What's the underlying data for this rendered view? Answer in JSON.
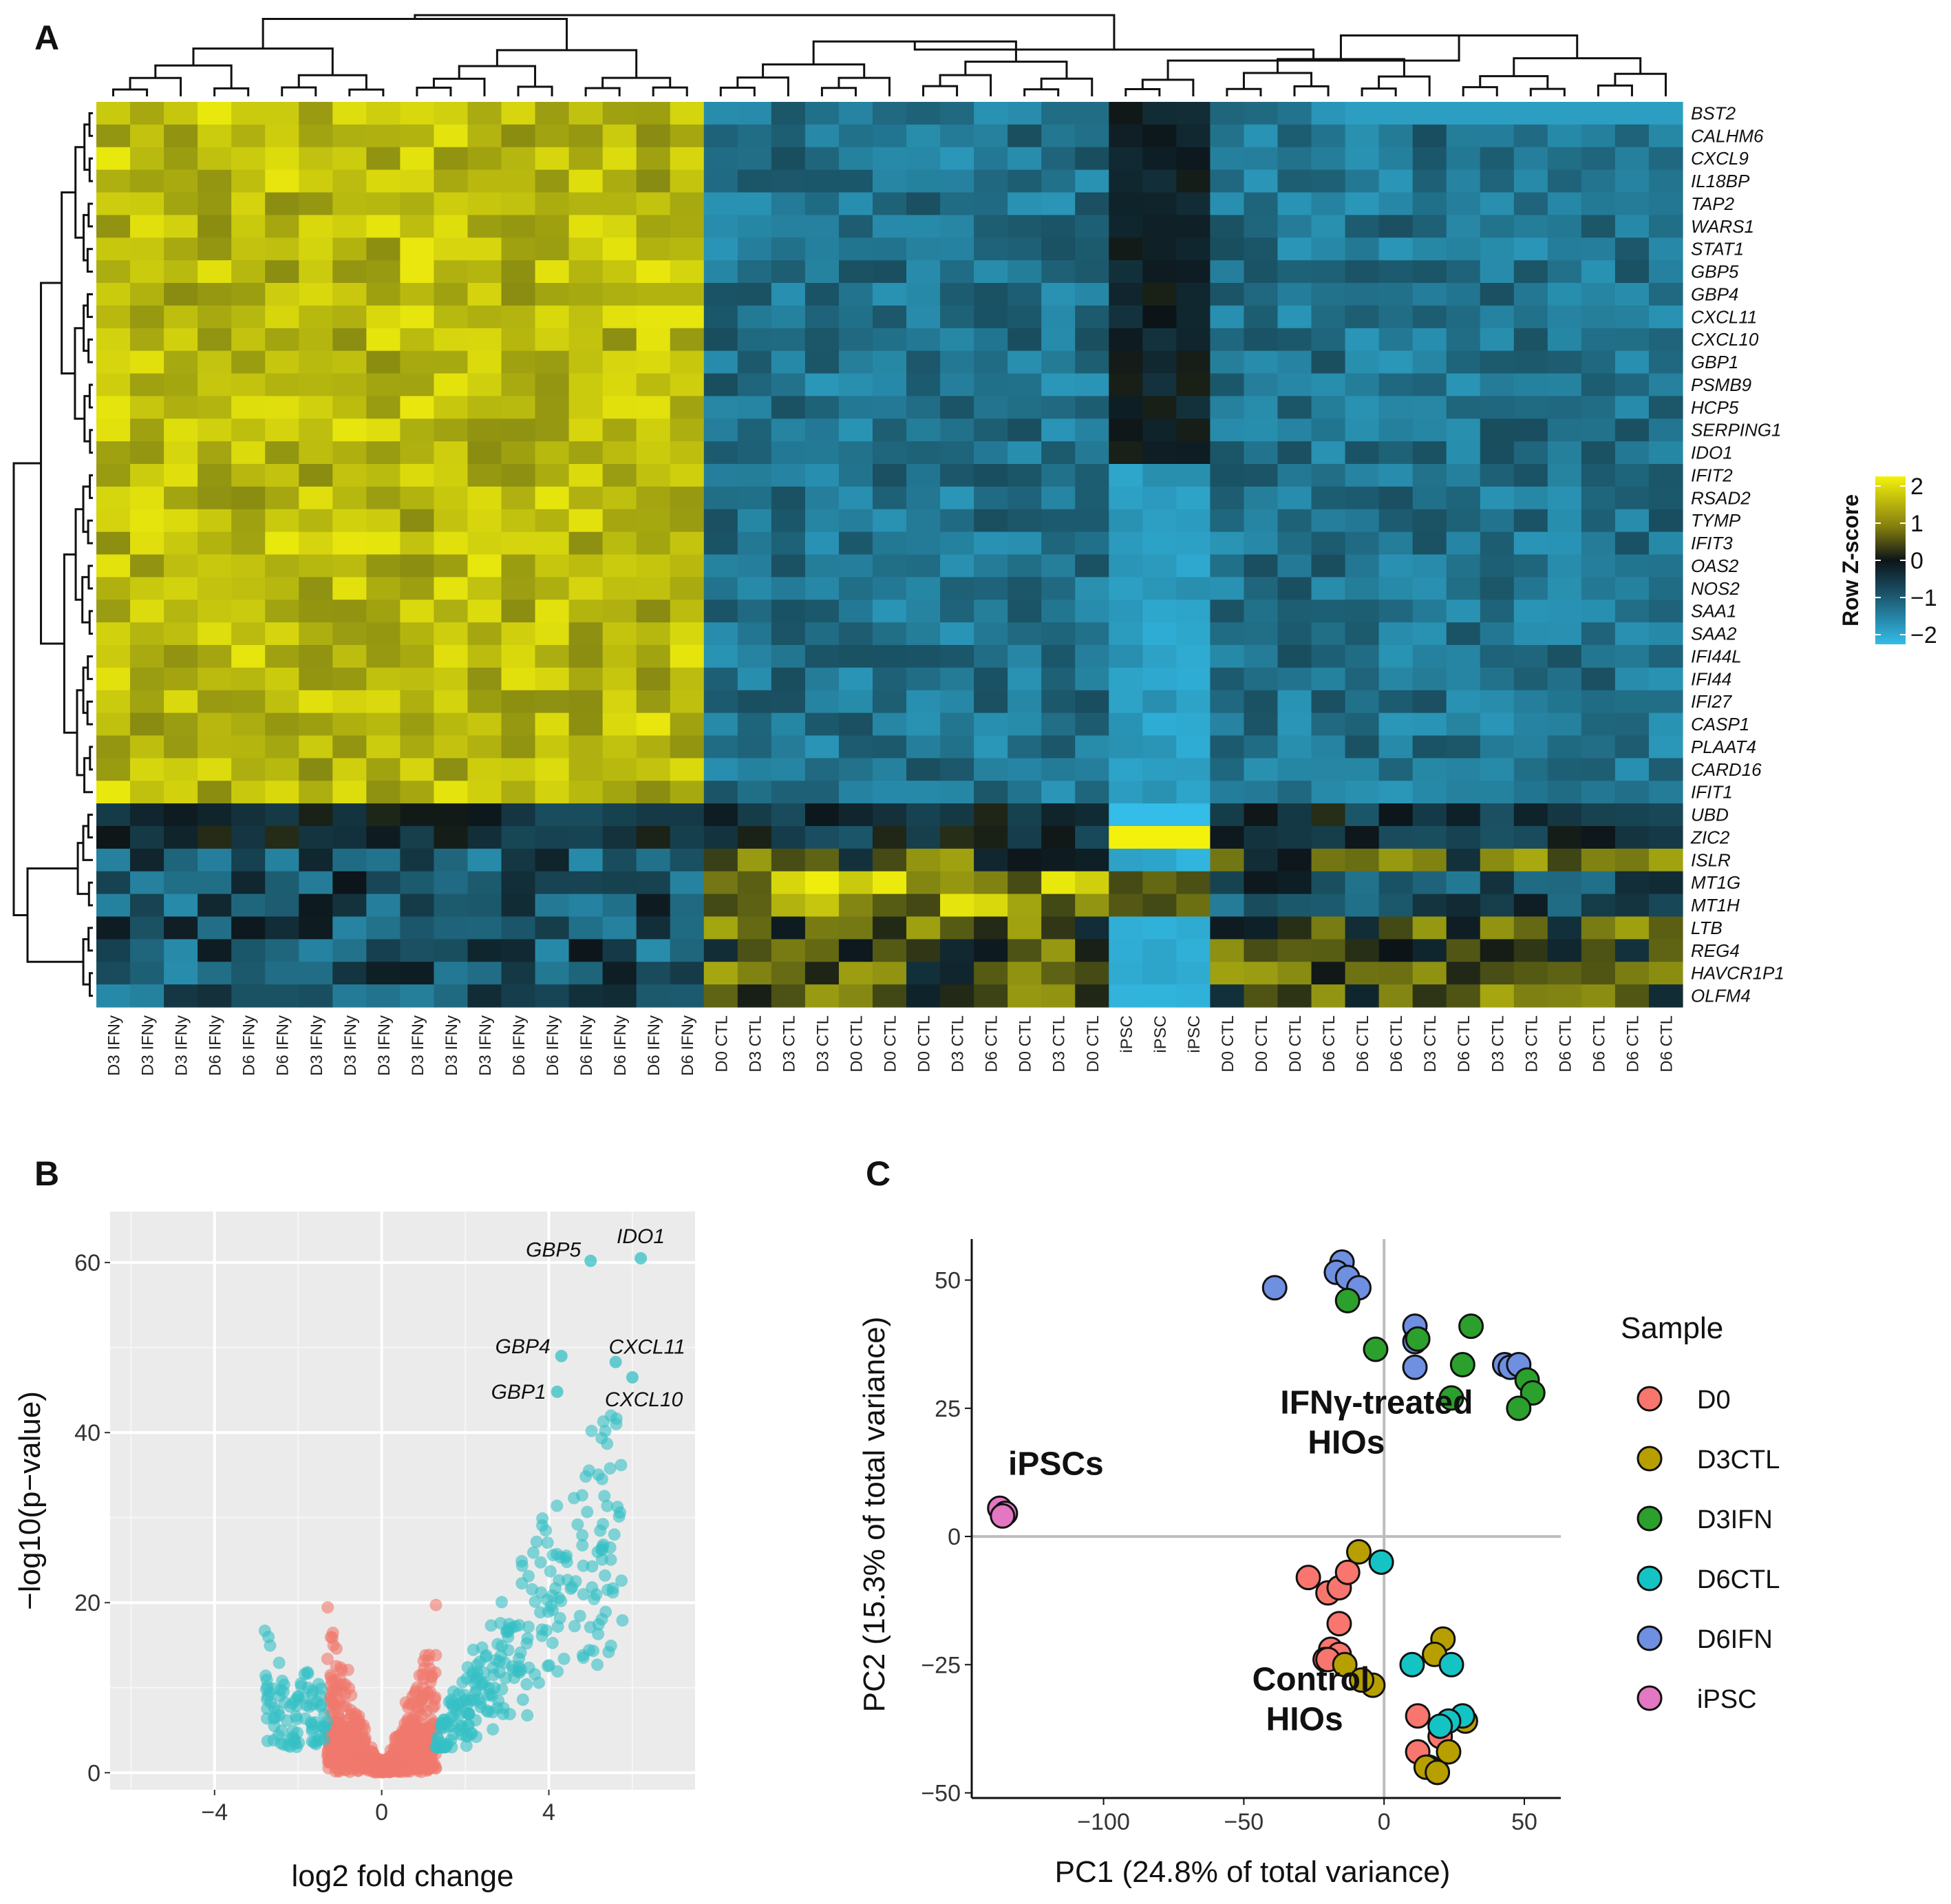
{
  "panels": {
    "a": "A",
    "b": "B",
    "c": "C"
  },
  "colors": {
    "heat_low": "#33bde8",
    "heat_mid": "#0c1418",
    "heat_high": "#f4f20c",
    "volcano_sig": "#35c0c4",
    "volcano_ns": "#f0786c",
    "ggplot_panel": "#ebebeb",
    "D0": "#f8766d",
    "D3CTL": "#b79f00",
    "D3IFN": "#2ca02c",
    "D6CTL": "#14c4c4",
    "D6IFN": "#6f8fe0",
    "iPSC": "#e377c2"
  },
  "chart_data": [
    {
      "type": "heatmap",
      "title": "",
      "genes": [
        "BST2",
        "CALHM6",
        "CXCL9",
        "IL18BP",
        "TAP2",
        "WARS1",
        "STAT1",
        "GBP5",
        "GBP4",
        "CXCL11",
        "CXCL10",
        "GBP1",
        "PSMB9",
        "HCP5",
        "SERPING1",
        "IDO1",
        "IFIT2",
        "RSAD2",
        "TYMP",
        "IFIT3",
        "OAS2",
        "NOS2",
        "SAA1",
        "SAA2",
        "IFI44L",
        "IFI44",
        "IFI27",
        "CASP1",
        "PLAAT4",
        "CARD16",
        "IFIT1",
        "UBD",
        "ZIC2",
        "ISLR",
        "MT1G",
        "MT1H",
        "LTB",
        "REG4",
        "HAVCR1P1",
        "OLFM4"
      ],
      "samples": [
        "D3 IFNy",
        "D3 IFNy",
        "D3 IFNy",
        "D6 IFNy",
        "D6 IFNy",
        "D6 IFNy",
        "D3 IFNy",
        "D3 IFNy",
        "D3 IFNy",
        "D3 IFNy",
        "D3 IFNy",
        "D3 IFNy",
        "D6 IFNy",
        "D6 IFNy",
        "D6 IFNy",
        "D6 IFNy",
        "D6 IFNy",
        "D6 IFNy",
        "D0 CTL",
        "D3 CTL",
        "D3 CTL",
        "D3 CTL",
        "D0 CTL",
        "D0 CTL",
        "D0 CTL",
        "D3 CTL",
        "D6 CTL",
        "D0 CTL",
        "D3 CTL",
        "D0 CTL",
        "iPSC",
        "iPSC",
        "iPSC",
        "D0 CTL",
        "D0 CTL",
        "D0 CTL",
        "D6 CTL",
        "D6 CTL",
        "D6 CTL",
        "D3 CTL",
        "D6 CTL",
        "D3 CTL",
        "D3 CTL",
        "D6 CTL",
        "D6 CTL",
        "D6 CTL",
        "D6 CTL"
      ],
      "color_scale": {
        "min": -2,
        "max": 2,
        "title": "Row Z-score",
        "ticks": [
          "2",
          "1",
          "0",
          "−1",
          "−2"
        ]
      },
      "groups": {
        "ifn_cols": 18,
        "ctl_cols": 12,
        "ipsc_cols": 3,
        "ctl2_cols": 14
      },
      "gene_clusters": {
        "ifn_induced_genes": 31,
        "other_genes": 9
      }
    },
    {
      "type": "scatter",
      "subtype": "volcano",
      "xlabel": "log2 fold change",
      "ylabel": "−log10(p−value)",
      "xlim": [
        -6.5,
        7.5
      ],
      "ylim": [
        -2,
        66
      ],
      "xticks": [
        "−4",
        "0",
        "4"
      ],
      "xtick_values": [
        -4,
        0,
        4
      ],
      "yticks": [
        "0",
        "20",
        "40",
        "60"
      ],
      "ytick_values": [
        0,
        20,
        40,
        60
      ],
      "labeled_points": [
        {
          "label": "IDO1",
          "x": 6.2,
          "y": 60.5
        },
        {
          "label": "GBP5",
          "x": 5.0,
          "y": 60.2
        },
        {
          "label": "GBP4",
          "x": 4.3,
          "y": 49.0
        },
        {
          "label": "CXCL11",
          "x": 5.6,
          "y": 48.3
        },
        {
          "label": "GBP1",
          "x": 4.2,
          "y": 44.8
        },
        {
          "label": "CXCL10",
          "x": 6.0,
          "y": 46.5
        }
      ]
    },
    {
      "type": "scatter",
      "subtype": "pca",
      "xlabel": "PC1 (24.8% of total variance)",
      "ylabel": "PC2 (15.3% of total variance)",
      "xlim": [
        -147,
        63
      ],
      "ylim": [
        -51,
        58
      ],
      "xticks": [
        "−100",
        "−50",
        "0",
        "50"
      ],
      "xtick_values": [
        -100,
        -50,
        0,
        50
      ],
      "yticks": [
        "−50",
        "−25",
        "0",
        "25",
        "50"
      ],
      "ytick_values": [
        -50,
        -25,
        0,
        25,
        50
      ],
      "annotations": [
        {
          "lines": [
            "iPSCs"
          ],
          "x": -134,
          "y": 12
        },
        {
          "lines": [
            "IFNγ-treated",
            "HIOs"
          ],
          "x": -37,
          "y": 24
        },
        {
          "lines": [
            "Control",
            "HIOs"
          ],
          "x": -47,
          "y": -30
        }
      ],
      "legend": {
        "title": "Sample",
        "position": "right",
        "entries": [
          "D0",
          "D3CTL",
          "D3IFN",
          "D6CTL",
          "D6IFN",
          "iPSC"
        ]
      },
      "series": [
        {
          "name": "D6IFN",
          "points": [
            [
              -39,
              48.5
            ],
            [
              -15,
              53.5
            ],
            [
              -17,
              51.5
            ],
            [
              -13,
              50.5
            ],
            [
              -9,
              48.5
            ],
            [
              11,
              41
            ],
            [
              11,
              38
            ],
            [
              11,
              33
            ],
            [
              43,
              33.5
            ],
            [
              45,
              33
            ],
            [
              48,
              33.5
            ]
          ]
        },
        {
          "name": "D3IFN",
          "points": [
            [
              -13,
              46
            ],
            [
              -3,
              36.5
            ],
            [
              12,
              38.5
            ],
            [
              31,
              41
            ],
            [
              28,
              33.5
            ],
            [
              24,
              27
            ],
            [
              51,
              30.5
            ],
            [
              53,
              28
            ],
            [
              48,
              25
            ]
          ]
        },
        {
          "name": "D0",
          "points": [
            [
              -27,
              -8
            ],
            [
              -20,
              -11
            ],
            [
              -16,
              -10
            ],
            [
              -13,
              -7
            ],
            [
              -16,
              -17
            ],
            [
              -19,
              -22
            ],
            [
              -16,
              -23
            ],
            [
              -21,
              -24
            ],
            [
              -20,
              -24
            ],
            [
              12,
              -35
            ],
            [
              12,
              -42
            ],
            [
              20,
              -39
            ],
            [
              16,
              -45
            ],
            [
              19,
              -46
            ]
          ]
        },
        {
          "name": "D3CTL",
          "points": [
            [
              -9,
              -3
            ],
            [
              -14,
              -25
            ],
            [
              -4,
              -29
            ],
            [
              -8,
              -28
            ],
            [
              21,
              -20
            ],
            [
              18,
              -23
            ],
            [
              23,
              -42
            ],
            [
              15,
              -45
            ],
            [
              19,
              -46
            ],
            [
              29,
              -36
            ]
          ]
        },
        {
          "name": "D6CTL",
          "points": [
            [
              -1,
              -5
            ],
            [
              10,
              -25
            ],
            [
              24,
              -25
            ],
            [
              28,
              -35
            ],
            [
              23,
              -36
            ],
            [
              20,
              -37
            ]
          ]
        },
        {
          "name": "iPSC",
          "points": [
            [
              -137,
              5.5
            ],
            [
              -135,
              4.5
            ],
            [
              -136,
              4
            ]
          ]
        }
      ]
    }
  ]
}
